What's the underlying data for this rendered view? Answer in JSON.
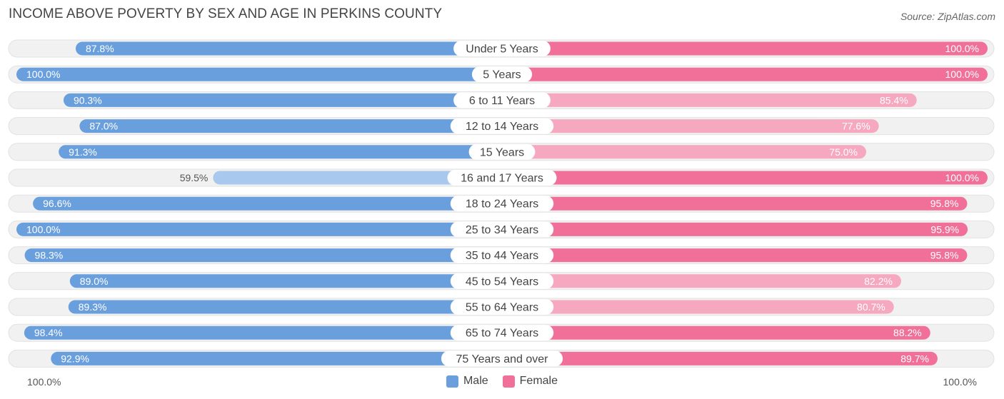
{
  "header": {
    "title": "INCOME ABOVE POVERTY BY SEX AND AGE IN PERKINS COUNTY",
    "source": "Source: ZipAtlas.com"
  },
  "axis": {
    "left_label": "100.0%",
    "right_label": "100.0%"
  },
  "legend": {
    "male_label": "Male",
    "female_label": "Female"
  },
  "colors": {
    "male": "#6a9fde",
    "male_light": "#a8c8ee",
    "female": "#f07099",
    "female_light": "#f6a8c0",
    "track": "#f1f1f1"
  },
  "chart_data": {
    "type": "bar",
    "orientation": "horizontal-diverging",
    "title": "INCOME ABOVE POVERTY BY SEX AND AGE IN PERKINS COUNTY",
    "categories": [
      "Under 5 Years",
      "5 Years",
      "6 to 11 Years",
      "12 to 14 Years",
      "15 Years",
      "16 and 17 Years",
      "18 to 24 Years",
      "25 to 34 Years",
      "35 to 44 Years",
      "45 to 54 Years",
      "55 to 64 Years",
      "65 to 74 Years",
      "75 Years and over"
    ],
    "series": [
      {
        "name": "Male",
        "values": [
          87.8,
          100.0,
          90.3,
          87.0,
          91.3,
          59.5,
          96.6,
          100.0,
          98.3,
          89.0,
          89.3,
          98.4,
          92.9
        ],
        "labels": [
          "87.8%",
          "100.0%",
          "90.3%",
          "87.0%",
          "91.3%",
          "59.5%",
          "96.6%",
          "100.0%",
          "98.3%",
          "89.0%",
          "89.3%",
          "98.4%",
          "92.9%"
        ]
      },
      {
        "name": "Female",
        "values": [
          100.0,
          100.0,
          85.4,
          77.6,
          75.0,
          100.0,
          95.8,
          95.9,
          95.8,
          82.2,
          80.7,
          88.2,
          89.7
        ],
        "labels": [
          "100.0%",
          "100.0%",
          "85.4%",
          "77.6%",
          "75.0%",
          "100.0%",
          "95.8%",
          "95.9%",
          "95.8%",
          "82.2%",
          "80.7%",
          "88.2%",
          "89.7%"
        ]
      }
    ],
    "xlim": [
      0,
      100
    ],
    "legend_position": "bottom-center"
  }
}
